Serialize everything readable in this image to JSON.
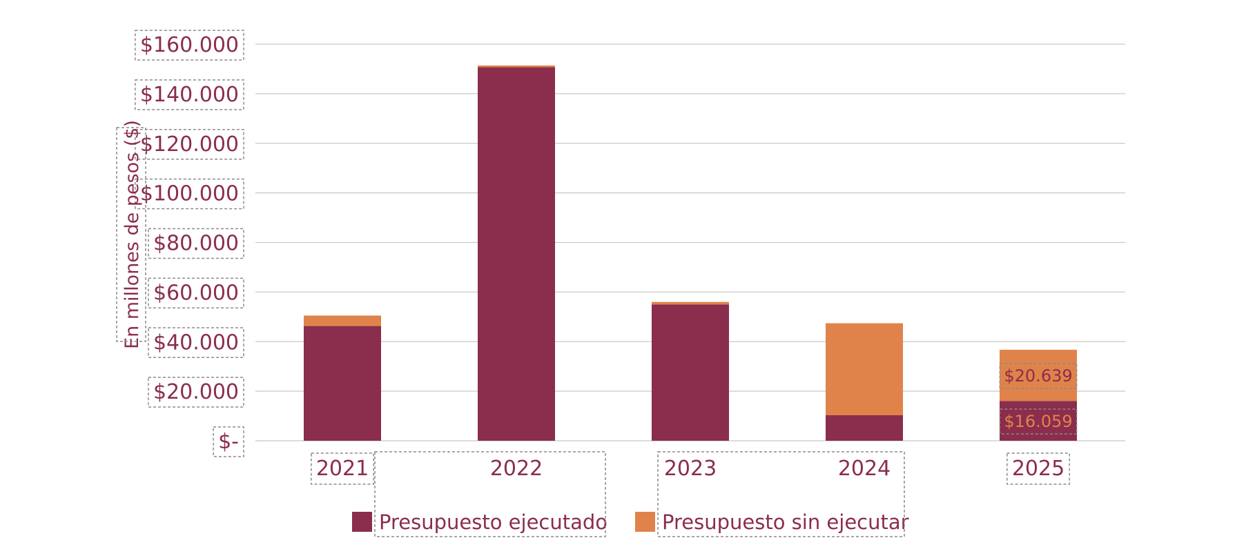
{
  "chart_data": {
    "type": "bar",
    "stacked": true,
    "title": "",
    "xlabel": "",
    "ylabel": "En millones de pesos ($)",
    "categories": [
      "2021",
      "2022",
      "2023",
      "2024",
      "2025"
    ],
    "series": [
      {
        "name": "Presupuesto ejecutado",
        "color": "#8B2D4D",
        "values": [
          46300,
          150700,
          55000,
          10300,
          16059
        ]
      },
      {
        "name": "Presupuesto sin ejecutar",
        "color": "#E0834A",
        "values": [
          4200,
          700,
          1000,
          37100,
          20639
        ]
      }
    ],
    "ylim": [
      0,
      160000
    ],
    "yticks": [
      0,
      20000,
      40000,
      60000,
      80000,
      100000,
      120000,
      140000,
      160000
    ],
    "ytick_labels": [
      "$-",
      "$20.000",
      "$40.000",
      "$60.000",
      "$80.000",
      "$100.000",
      "$120.000",
      "$140.000",
      "$160.000"
    ],
    "grid": true,
    "legend": "bottom-center",
    "annotations": [
      {
        "category": "2025",
        "series": "Presupuesto sin ejecutar",
        "text": "$20.639",
        "color": "#8B2D4D"
      },
      {
        "category": "2025",
        "series": "Presupuesto ejecutado",
        "text": "$16.059",
        "color": "#E0834A"
      }
    ],
    "colors": {
      "text": "#8B2D4D",
      "grid": "#C8C8C8"
    }
  }
}
